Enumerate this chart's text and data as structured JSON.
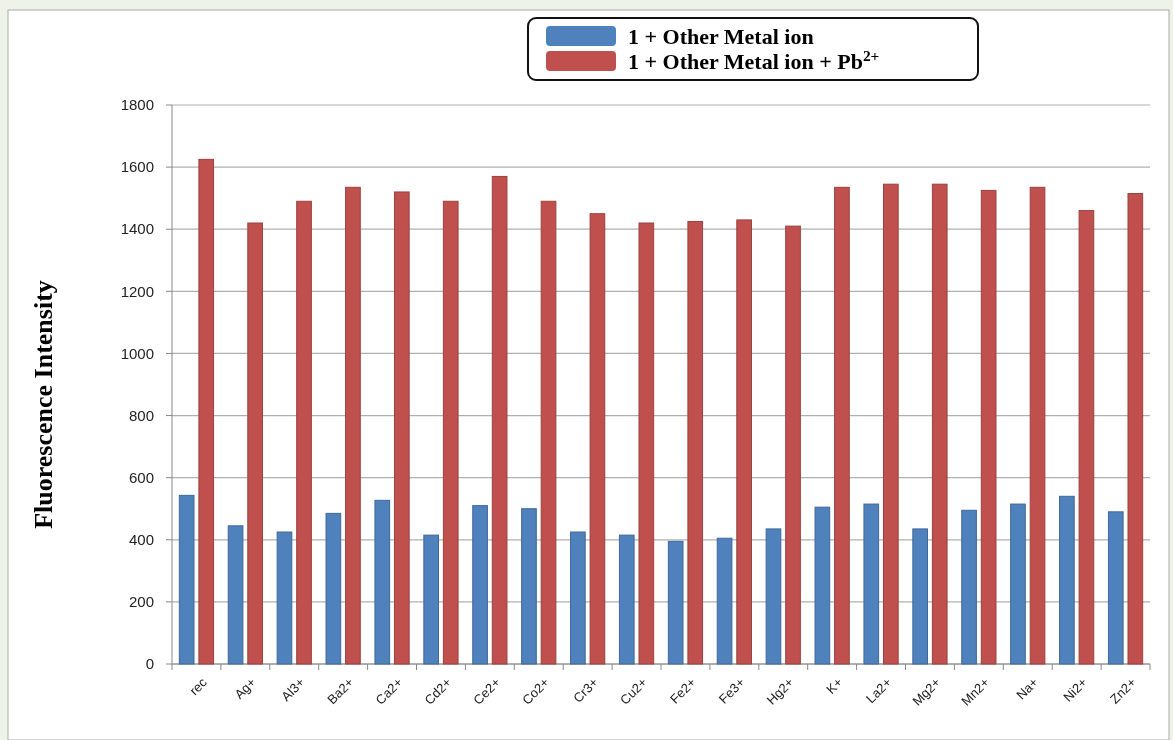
{
  "chart_data": {
    "type": "bar",
    "ylabel": "Fluorescence Intensity",
    "categories": [
      "rec",
      "Ag+",
      "Al3+",
      "Ba2+",
      "Ca2+",
      "Cd2+",
      "Ce2+",
      "Co2+",
      "Cr3+",
      "Cu2+",
      "Fe2+",
      "Fe3+",
      "Hg2+",
      "K+",
      "La2+",
      "Mg2+",
      "Mn2+",
      "Na+",
      "Ni2+",
      "Zn2+"
    ],
    "series": [
      {
        "name": "1 + Other Metal ion",
        "color": "#4f81bd",
        "values": [
          543,
          445,
          425,
          485,
          527,
          415,
          510,
          500,
          425,
          415,
          395,
          405,
          435,
          505,
          515,
          435,
          495,
          515,
          540,
          490
        ]
      },
      {
        "name": "1 + Other Metal ion + Pb$^{2+}$",
        "color": "#c0504d",
        "values": [
          1625,
          1420,
          1490,
          1535,
          1520,
          1490,
          1570,
          1490,
          1450,
          1420,
          1425,
          1430,
          1410,
          1535,
          1545,
          1545,
          1525,
          1535,
          1460,
          1515
        ]
      }
    ],
    "ylim": [
      0,
      1800
    ],
    "yticks": [
      0,
      200,
      400,
      600,
      800,
      1000,
      1200,
      1400,
      1600,
      1800
    ],
    "grid": "y",
    "legend": "top"
  }
}
